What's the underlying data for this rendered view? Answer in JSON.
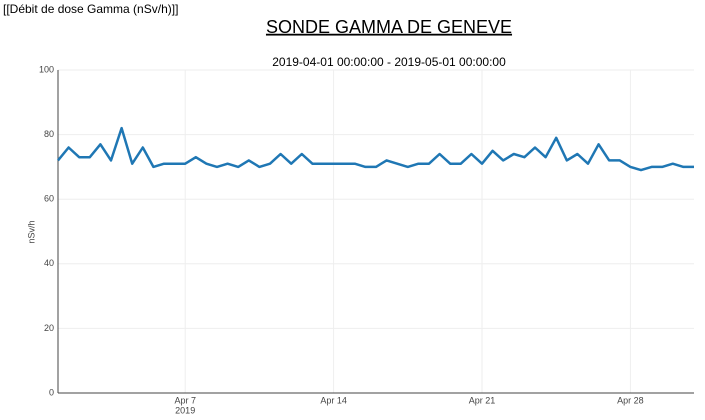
{
  "page_label": "[[Débit de dose Gamma (nSv/h)]]",
  "chart_data": {
    "type": "line",
    "title": "SONDE GAMMA DE GENEVE",
    "subtitle": "2019-04-01 00:00:00 - 2019-05-01 00:00:00",
    "y_label": "nSv/h",
    "x": [
      "2019-04-01 00:00",
      "2019-04-01 12:00",
      "2019-04-02 00:00",
      "2019-04-02 12:00",
      "2019-04-03 00:00",
      "2019-04-03 12:00",
      "2019-04-04 00:00",
      "2019-04-04 12:00",
      "2019-04-05 00:00",
      "2019-04-05 12:00",
      "2019-04-06 00:00",
      "2019-04-06 12:00",
      "2019-04-07 00:00",
      "2019-04-07 12:00",
      "2019-04-08 00:00",
      "2019-04-08 12:00",
      "2019-04-09 00:00",
      "2019-04-09 12:00",
      "2019-04-10 00:00",
      "2019-04-10 12:00",
      "2019-04-11 00:00",
      "2019-04-11 12:00",
      "2019-04-12 00:00",
      "2019-04-12 12:00",
      "2019-04-13 00:00",
      "2019-04-13 12:00",
      "2019-04-14 00:00",
      "2019-04-14 12:00",
      "2019-04-15 00:00",
      "2019-04-15 12:00",
      "2019-04-16 00:00",
      "2019-04-16 12:00",
      "2019-04-17 00:00",
      "2019-04-17 12:00",
      "2019-04-18 00:00",
      "2019-04-18 12:00",
      "2019-04-19 00:00",
      "2019-04-19 12:00",
      "2019-04-20 00:00",
      "2019-04-20 12:00",
      "2019-04-21 00:00",
      "2019-04-21 12:00",
      "2019-04-22 00:00",
      "2019-04-22 12:00",
      "2019-04-23 00:00",
      "2019-04-23 12:00",
      "2019-04-24 00:00",
      "2019-04-24 12:00",
      "2019-04-25 00:00",
      "2019-04-25 12:00",
      "2019-04-26 00:00",
      "2019-04-26 12:00",
      "2019-04-27 00:00",
      "2019-04-27 12:00",
      "2019-04-28 00:00",
      "2019-04-28 12:00",
      "2019-04-29 00:00",
      "2019-04-29 12:00",
      "2019-04-30 00:00",
      "2019-04-30 12:00",
      "2019-05-01 00:00"
    ],
    "series": [
      {
        "name": "nSv/h",
        "color": "#1f77b4",
        "values": [
          72,
          76,
          73,
          73,
          77,
          72,
          82,
          71,
          76,
          70,
          71,
          71,
          71,
          73,
          71,
          70,
          71,
          70,
          72,
          70,
          71,
          74,
          71,
          74,
          71,
          71,
          71,
          71,
          71,
          70,
          70,
          72,
          71,
          70,
          71,
          71,
          74,
          71,
          71,
          74,
          71,
          75,
          72,
          74,
          73,
          76,
          73,
          79,
          72,
          74,
          71,
          77,
          72,
          72,
          70,
          69,
          70,
          70,
          71,
          70,
          70
        ]
      }
    ],
    "xlim": [
      "2019-04-01 00:00",
      "2019-05-01 00:00"
    ],
    "xticks": [
      {
        "value": "2019-04-07 00:00",
        "label": "Apr 7"
      },
      {
        "value": "2019-04-14 00:00",
        "label": "Apr 14"
      },
      {
        "value": "2019-04-21 00:00",
        "label": "Apr 21"
      },
      {
        "value": "2019-04-28 00:00",
        "label": "Apr 28"
      }
    ],
    "x_year": "2019",
    "ylim": [
      0,
      100
    ],
    "yticks": [
      0,
      20,
      40,
      60,
      80,
      100
    ],
    "grid": true
  }
}
